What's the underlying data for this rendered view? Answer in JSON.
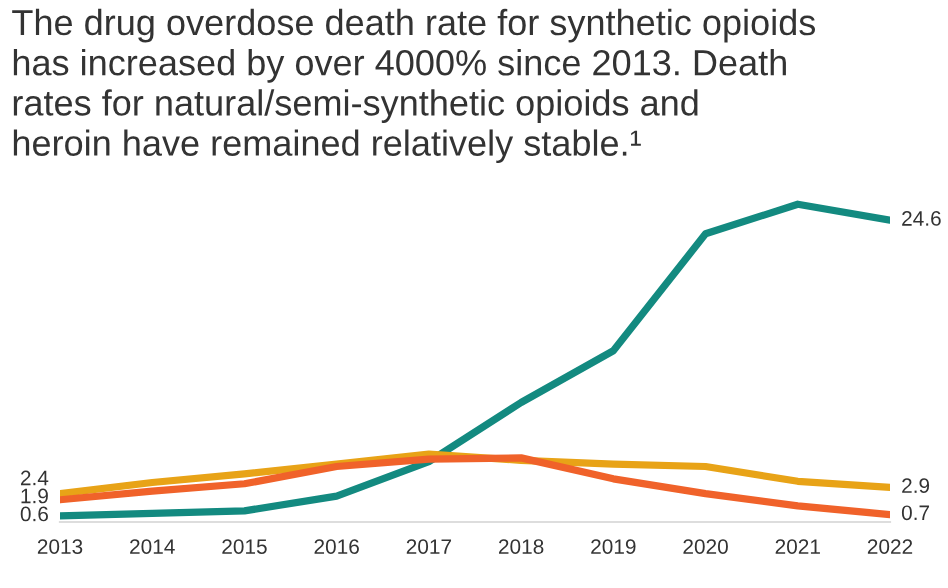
{
  "chart_data": {
    "type": "line",
    "title": "The drug overdose death rate for synthetic opioids\nhas increased by over 4000% since 2013. Death\nrates for natural/semi-synthetic opioids and\nheroin have remained relatively stable.¹",
    "categories": [
      "2013",
      "2014",
      "2015",
      "2016",
      "2017",
      "2018",
      "2019",
      "2020",
      "2021",
      "2022"
    ],
    "tick_labels": "x",
    "grid": false,
    "legend": false,
    "marker": "none",
    "line_style": "solid",
    "series": [
      {
        "color": "#138a80",
        "values": [
          0.6,
          0.8,
          1.0,
          2.2,
          5.0,
          9.8,
          14.0,
          23.5,
          25.9,
          24.6
        ],
        "value_labels": [
          "0.6",
          null,
          null,
          null,
          null,
          null,
          null,
          null,
          null,
          "24.6"
        ]
      },
      {
        "color": "#e8a317",
        "values": [
          2.4,
          3.3,
          4.0,
          4.8,
          5.6,
          5.1,
          4.8,
          4.6,
          3.4,
          2.9
        ],
        "value_labels": [
          "2.4",
          null,
          null,
          null,
          null,
          null,
          null,
          null,
          null,
          "2.9"
        ]
      },
      {
        "color": "#f0622a",
        "values": [
          1.9,
          2.6,
          3.2,
          4.6,
          5.2,
          5.3,
          3.6,
          2.4,
          1.4,
          0.7
        ],
        "value_labels": [
          "1.9",
          null,
          null,
          null,
          null,
          null,
          null,
          null,
          null,
          "0.7"
        ]
      }
    ]
  }
}
